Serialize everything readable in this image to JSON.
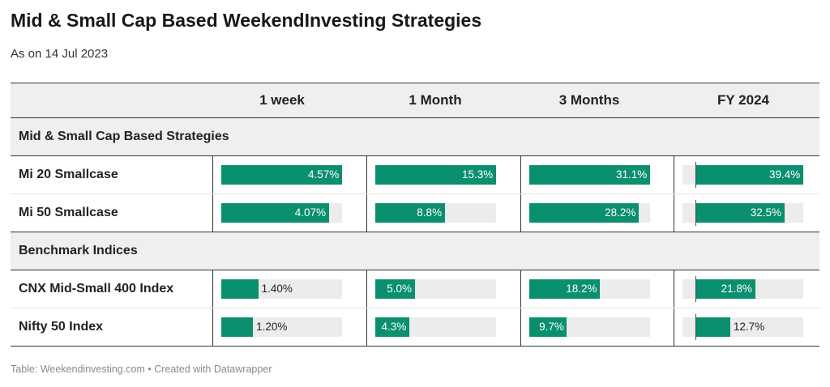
{
  "title": "Mid & Small Cap Based WeekendInvesting Strategies",
  "subtitle": "As on 14 Jul 2023",
  "footer": {
    "source": "Table: Weekendinvesting.com",
    "separator": "•",
    "credit": "Created with Datawrapper"
  },
  "colors": {
    "bar": "#0a8f6f",
    "track": "#ececec",
    "header_bg": "#efefef"
  },
  "chart_data": {
    "type": "table",
    "columns": [
      "1 week",
      "1 Month",
      "3 Months",
      "FY 2024"
    ],
    "groups": [
      {
        "name": "Mid & Small Cap Based Strategies",
        "rows": [
          {
            "label": "Mi 20 Smallcase",
            "values": [
              4.57,
              15.3,
              31.1,
              39.4
            ],
            "display": [
              "4.57%",
              "15.3%",
              "31.1%",
              "39.4%"
            ]
          },
          {
            "label": "Mi 50 Smallcase",
            "values": [
              4.07,
              8.8,
              28.2,
              32.5
            ],
            "display": [
              "4.07%",
              "8.8%",
              "28.2%",
              "32.5%"
            ]
          }
        ]
      },
      {
        "name": "Benchmark Indices",
        "rows": [
          {
            "label": "CNX Mid-Small 400 Index",
            "values": [
              1.4,
              5.0,
              18.2,
              21.8
            ],
            "display": [
              "1.40%",
              "5.0%",
              "18.2%",
              "21.8%"
            ]
          },
          {
            "label": "Nifty 50 Index",
            "values": [
              1.2,
              4.3,
              9.7,
              12.7
            ],
            "display": [
              "1.20%",
              "4.3%",
              "9.7%",
              "12.7%"
            ]
          }
        ]
      }
    ],
    "column_max": [
      4.57,
      15.3,
      31.1,
      39.4
    ]
  }
}
